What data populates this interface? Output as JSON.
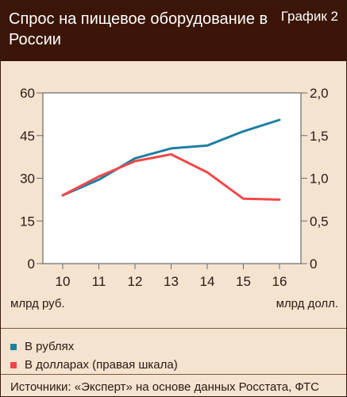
{
  "header": {
    "title": "Спрос на пищевое оборудование в России",
    "chart_number": "График 2"
  },
  "units": {
    "left": "млрд руб.",
    "right": "млрд долл."
  },
  "legend": [
    {
      "label": "В рублях",
      "color": "#1f7fa3"
    },
    {
      "label": "В долларах (правая шкала)",
      "color": "#f0484a"
    }
  ],
  "source": "Источники: «Эксперт» на основе данных Росстата, ФТС",
  "colors": {
    "header_bg": "#3b1608",
    "panel_bg": "#f3e3cf",
    "rubles_line": "#1f7fa3",
    "dollars_line": "#f0484a"
  },
  "chart_data": {
    "type": "line",
    "categories": [
      "10",
      "11",
      "12",
      "13",
      "14",
      "15",
      "16"
    ],
    "series": [
      {
        "name": "В рублях",
        "axis": "left",
        "values": [
          24,
          29.5,
          37,
          40.5,
          41.5,
          46.5,
          50.5
        ]
      },
      {
        "name": "В долларах (правая шкала)",
        "axis": "right",
        "values": [
          0.8,
          1.02,
          1.2,
          1.28,
          1.07,
          0.76,
          0.75
        ]
      }
    ],
    "y_left": {
      "ticks": [
        "0",
        "15",
        "30",
        "45",
        "60"
      ],
      "range": [
        0,
        60
      ]
    },
    "y_right": {
      "ticks": [
        "0",
        "0,5",
        "1,0",
        "1,5",
        "2,0"
      ],
      "range": [
        0,
        2
      ]
    },
    "grid": false
  }
}
